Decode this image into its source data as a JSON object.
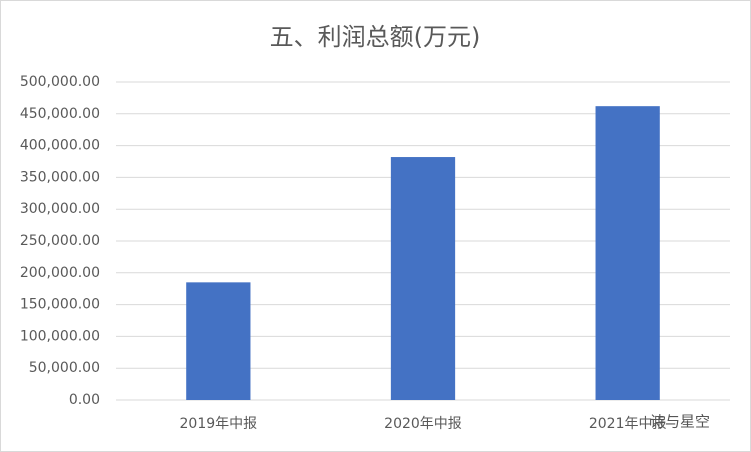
{
  "chart_data": {
    "type": "bar",
    "title": "五、利润总额(万元)",
    "categories": [
      "2019年中报",
      "2020年中报",
      "2021年中报"
    ],
    "values": [
      185000,
      382000,
      462000
    ],
    "color": "#4472c4",
    "ylim": [
      0,
      500000
    ],
    "yticks": [
      {
        "value": 0,
        "label": "0.00"
      },
      {
        "value": 50000,
        "label": "50,000.00"
      },
      {
        "value": 100000,
        "label": "100,000.00"
      },
      {
        "value": 150000,
        "label": "150,000.00"
      },
      {
        "value": 200000,
        "label": "200,000.00"
      },
      {
        "value": 250000,
        "label": "250,000.00"
      },
      {
        "value": 300000,
        "label": "300,000.00"
      },
      {
        "value": 350000,
        "label": "350,000.00"
      },
      {
        "value": 400000,
        "label": "400,000.00"
      },
      {
        "value": 450000,
        "label": "450,000.00"
      },
      {
        "value": 500000,
        "label": "500,000.00"
      }
    ],
    "grid": true,
    "watermark": "诗与星空"
  }
}
